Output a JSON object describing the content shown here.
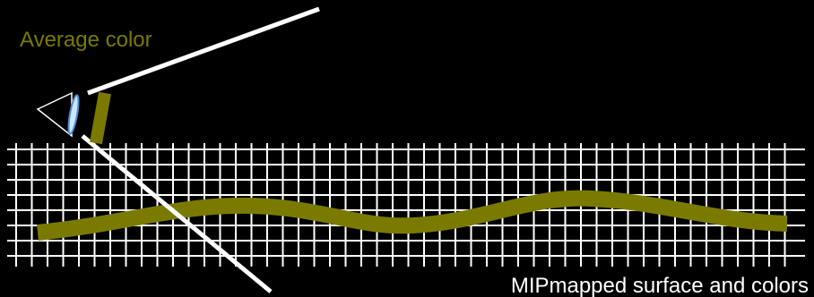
{
  "labels": {
    "average_color": "Average color",
    "surface": "MIPmapped surface and colors"
  }
}
